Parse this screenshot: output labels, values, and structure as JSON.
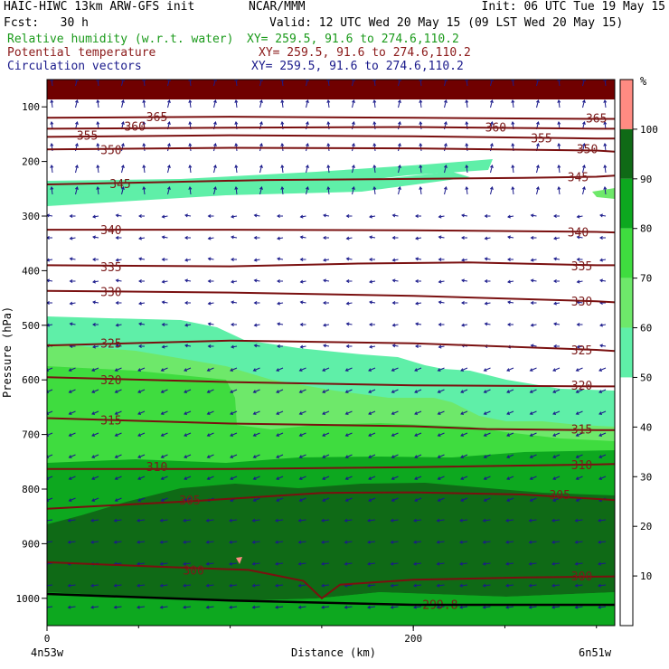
{
  "header": {
    "title_left": "HAIC-HIWC 13km ARW-GFS init",
    "center": "NCAR/MMM",
    "init": "Init: 06 UTC Tue 19 May 15",
    "fcst": "Fcst:   30 h",
    "valid": "Valid: 12 UTC Wed 20 May 15 (09 LST Wed 20 May 15)",
    "fields": [
      {
        "name": "Relative humidity (w.r.t. water)",
        "xy": "XY= 259.5, 91.6 to 274.6,110.2",
        "color": "#1a9a1a"
      },
      {
        "name": "Potential temperature",
        "xy": "XY= 259.5, 91.6 to 274.6,110.2",
        "color": "#8b1a1a"
      },
      {
        "name": "Circulation vectors",
        "xy": "XY= 259.5, 91.6 to 274.6,110.2",
        "color": "#1a1a8b"
      }
    ]
  },
  "colors": {
    "theta_line": "#7a1010",
    "vector": "#1a1a8b",
    "rh_90_100": "#0f6a16",
    "rh_80_90": "#0da81f",
    "rh_70_80": "#3fdc3f",
    "rh_60_70": "#6ee86a",
    "rh_50_60": "#5fefa8",
    "rh_100": "#ff8b82",
    "top_band": "#700000"
  },
  "chart_data": {
    "type": "cross-section",
    "xlabel": "Distance (km)",
    "ylabel": "Pressure (hPa)",
    "x_ticks": [
      0,
      200
    ],
    "x_range_km": [
      0,
      310
    ],
    "y_ticks": [
      100,
      200,
      300,
      400,
      500,
      600,
      700,
      800,
      900,
      1000
    ],
    "y_range_hpa": [
      50,
      1050
    ],
    "left_endpoint": "4n53w",
    "right_endpoint": "6n51w",
    "colorbar": {
      "unit": "%",
      "ticks": [
        10,
        20,
        30,
        40,
        50,
        60,
        70,
        80,
        90,
        100
      ],
      "bands": [
        {
          "from": 100,
          "to": 110,
          "color": "#ff8b82"
        },
        {
          "from": 90,
          "to": 100,
          "color": "#0f6a16"
        },
        {
          "from": 80,
          "to": 90,
          "color": "#0da81f"
        },
        {
          "from": 70,
          "to": 80,
          "color": "#3fdc3f"
        },
        {
          "from": 60,
          "to": 70,
          "color": "#6ee86a"
        },
        {
          "from": 50,
          "to": 60,
          "color": "#5fefa8"
        },
        {
          "from": 0,
          "to": 50,
          "color": "#ffffff"
        }
      ]
    },
    "theta_contours": [
      {
        "value": "365",
        "points": [
          [
            0,
            120
          ],
          [
            100,
            118
          ],
          [
            200,
            120
          ],
          [
            300,
            122
          ],
          [
            310,
            122
          ]
        ],
        "labels": [
          [
            60,
            118
          ],
          [
            300,
            120
          ]
        ]
      },
      {
        "value": "360",
        "points": [
          [
            0,
            140
          ],
          [
            100,
            138
          ],
          [
            200,
            137
          ],
          [
            300,
            140
          ],
          [
            310,
            140
          ]
        ],
        "labels": [
          [
            48,
            135
          ],
          [
            245,
            137
          ]
        ]
      },
      {
        "value": "355",
        "points": [
          [
            0,
            155
          ],
          [
            100,
            152
          ],
          [
            200,
            154
          ],
          [
            300,
            158
          ],
          [
            310,
            158
          ]
        ],
        "labels": [
          [
            22,
            152
          ],
          [
            270,
            157
          ]
        ]
      },
      {
        "value": "350",
        "points": [
          [
            0,
            178
          ],
          [
            100,
            175
          ],
          [
            200,
            176
          ],
          [
            300,
            180
          ],
          [
            310,
            182
          ]
        ],
        "labels": [
          [
            35,
            178
          ],
          [
            295,
            177
          ]
        ]
      },
      {
        "value": "345",
        "points": [
          [
            0,
            242
          ],
          [
            60,
            238
          ],
          [
            120,
            234
          ],
          [
            200,
            232
          ],
          [
            260,
            230
          ],
          [
            300,
            228
          ],
          [
            310,
            226
          ]
        ],
        "labels": [
          [
            40,
            240
          ],
          [
            290,
            228
          ]
        ]
      },
      {
        "value": "340",
        "points": [
          [
            0,
            325
          ],
          [
            100,
            325
          ],
          [
            200,
            326
          ],
          [
            300,
            329
          ],
          [
            310,
            330
          ]
        ],
        "labels": [
          [
            35,
            325
          ],
          [
            290,
            329
          ]
        ]
      },
      {
        "value": "335",
        "points": [
          [
            0,
            390
          ],
          [
            100,
            392
          ],
          [
            170,
            387
          ],
          [
            230,
            385
          ],
          [
            300,
            390
          ],
          [
            310,
            390
          ]
        ],
        "labels": [
          [
            35,
            393
          ],
          [
            292,
            391
          ]
        ]
      },
      {
        "value": "330",
        "points": [
          [
            0,
            437
          ],
          [
            100,
            440
          ],
          [
            200,
            446
          ],
          [
            300,
            456
          ],
          [
            310,
            458
          ]
        ],
        "labels": [
          [
            35,
            438
          ],
          [
            292,
            456
          ]
        ]
      },
      {
        "value": "325",
        "points": [
          [
            0,
            537
          ],
          [
            100,
            528
          ],
          [
            200,
            533
          ],
          [
            300,
            545
          ],
          [
            310,
            547
          ]
        ],
        "labels": [
          [
            35,
            533
          ],
          [
            292,
            545
          ]
        ]
      },
      {
        "value": "320",
        "points": [
          [
            0,
            595
          ],
          [
            100,
            604
          ],
          [
            200,
            610
          ],
          [
            300,
            612
          ],
          [
            310,
            612
          ]
        ],
        "labels": [
          [
            35,
            600
          ],
          [
            292,
            610
          ]
        ]
      },
      {
        "value": "315",
        "points": [
          [
            0,
            670
          ],
          [
            100,
            680
          ],
          [
            200,
            685
          ],
          [
            240,
            690
          ],
          [
            300,
            692
          ],
          [
            310,
            692
          ]
        ],
        "labels": [
          [
            35,
            673
          ],
          [
            292,
            690
          ]
        ]
      },
      {
        "value": "310",
        "points": [
          [
            0,
            763
          ],
          [
            100,
            763
          ],
          [
            200,
            760
          ],
          [
            300,
            755
          ],
          [
            310,
            754
          ]
        ],
        "labels": [
          [
            60,
            759
          ],
          [
            292,
            755
          ]
        ]
      },
      {
        "value": "305",
        "points": [
          [
            0,
            836
          ],
          [
            80,
            822
          ],
          [
            150,
            807
          ],
          [
            200,
            806
          ],
          [
            260,
            810
          ],
          [
            310,
            820
          ]
        ],
        "labels": [
          [
            78,
            820
          ],
          [
            280,
            810
          ]
        ]
      },
      {
        "value": "300",
        "points": [
          [
            0,
            934
          ],
          [
            60,
            942
          ],
          [
            110,
            948
          ],
          [
            140,
            968
          ],
          [
            150,
            1000
          ],
          [
            160,
            975
          ],
          [
            200,
            966
          ],
          [
            260,
            962
          ],
          [
            310,
            960
          ]
        ],
        "labels": [
          [
            80,
            948
          ],
          [
            292,
            959
          ]
        ]
      }
    ],
    "annotations": [
      {
        "text": "299.8",
        "at": [
          205,
          1019
        ]
      }
    ],
    "terrain_line_hpa": [
      [
        0,
        992
      ],
      [
        100,
        1004
      ],
      [
        150,
        1008
      ],
      [
        200,
        1012
      ],
      [
        310,
        1012
      ]
    ]
  }
}
